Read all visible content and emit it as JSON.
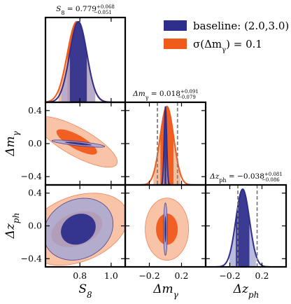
{
  "chart_data": {
    "type": "corner",
    "parameters": [
      {
        "key": "S8",
        "symbol": "S_8",
        "label": "S8",
        "ticks": [
          "0.8",
          "1.0"
        ],
        "tick_values": [
          0.8,
          1.0
        ],
        "range": [
          0.58,
          1.09
        ]
      },
      {
        "key": "dm",
        "symbol": "Δm_γ",
        "label": "Δmγ",
        "ticks": [
          "−0.2",
          "0.0",
          "0.2",
          "0.4"
        ],
        "tick_values": [
          -0.4,
          0.0,
          0.4
        ],
        "y_ticks": [
          "0.4",
          "0.0",
          "−0.4"
        ],
        "x_ticks": [
          "−0.2",
          "0.2"
        ],
        "x_tick_values": [
          -0.2,
          0.2
        ],
        "range": [
          -0.5,
          0.5
        ]
      },
      {
        "key": "dz",
        "symbol": "Δz_ph",
        "label": "Δzph",
        "y_ticks": [
          "0.4",
          "0.0",
          "−0.4"
        ],
        "x_ticks": [
          "−0.2",
          "0.2"
        ],
        "x_tick_values": [
          -0.2,
          0.2
        ],
        "range": [
          -0.5,
          0.5
        ]
      }
    ],
    "titles": {
      "S8": "S8 = 0.779 +0.068 −0.051",
      "dm": "Δmγ = 0.018 +0.091 −0.079",
      "dz": "Δzph = −0.038 +0.081 −0.086"
    },
    "title_parts": {
      "S8": {
        "lhs": "S",
        "sub": "8",
        "value": " = 0.779",
        "plus": "+0.068",
        "minus": "−0.051"
      },
      "dm": {
        "lhs": "Δm",
        "sub": "γ",
        "value": " = 0.018",
        "plus": "+0.091",
        "minus": "−0.079"
      },
      "dz": {
        "lhs": "Δz",
        "sub": "ph",
        "value": " = −0.038",
        "plus": "+0.081",
        "minus": "−0.086"
      }
    },
    "series": [
      {
        "name": "baseline: (2.0,3.0)",
        "color": "#2e2e8c",
        "light_color": "#a9a9d4",
        "marginals": {
          "S8": {
            "mean": 0.79,
            "sigma": 0.055
          },
          "dm": {
            "mean": 0.0,
            "sigma": 0.015
          },
          "dz": {
            "mean": -0.04,
            "sigma": 0.085
          }
        },
        "contours": {
          "S8_dm": {
            "cx": 0.79,
            "cy": 0.0,
            "sx": 0.085,
            "sy": 0.013,
            "angle": -6
          },
          "S8_dz": {
            "cx": 0.79,
            "cy": -0.04,
            "sx": 0.115,
            "sy": 0.18,
            "angle": 25
          },
          "dm_dz": {
            "cx": 0.0,
            "cy": -0.04,
            "sx": 0.012,
            "sy": 0.16,
            "angle": 0
          }
        }
      },
      {
        "name": "σ(Δmγ) = 0.1",
        "color": "#f05a1a",
        "light_color": "#f6b08a",
        "marginals": {
          "S8": {
            "mean": 0.78,
            "sigma": 0.06
          },
          "dm": {
            "mean": 0.018,
            "sigma": 0.085
          },
          "dz": null
        },
        "contours": {
          "S8_dm": {
            "cx": 0.78,
            "cy": 0.02,
            "sx": 0.145,
            "sy": 0.085,
            "angle": -28
          },
          "S8_dz": {
            "cx": 0.78,
            "cy": -0.04,
            "sx": 0.17,
            "sy": 0.2,
            "angle": 20
          },
          "dm_dz": {
            "cx": 0.018,
            "cy": -0.04,
            "sx": 0.135,
            "sy": 0.19,
            "angle": 0
          }
        }
      }
    ],
    "dashed_lines": {
      "dm": [
        -0.1,
        0.15
      ],
      "dz": [
        -0.1,
        0.14
      ]
    },
    "legend": {
      "position": "top-right",
      "entries": [
        "baseline: (2.0,3.0)",
        "σ(Δmγ) = 0.1"
      ]
    },
    "legend_parts": [
      {
        "text": "baseline: (2.0,3.0)"
      },
      {
        "pre": "σ(Δm",
        "sub": "γ",
        "post": ") = 0.1"
      }
    ]
  }
}
